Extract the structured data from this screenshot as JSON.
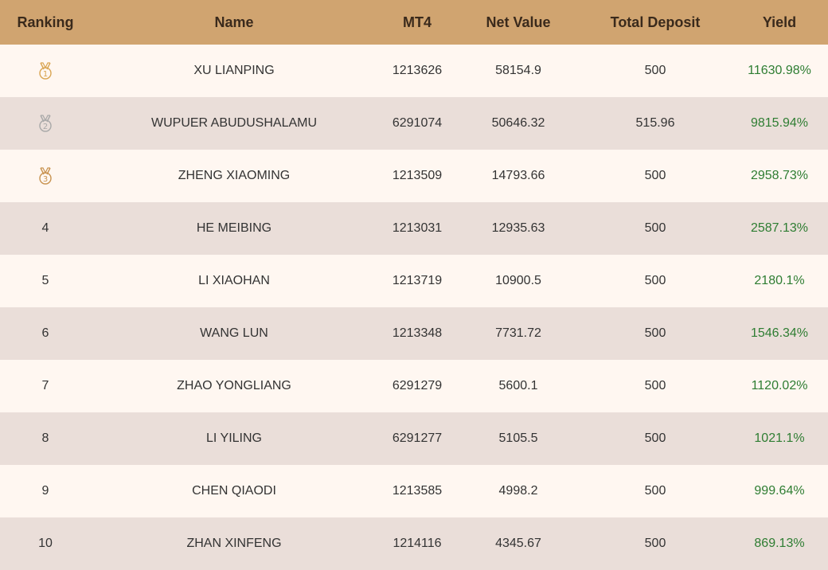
{
  "header": {
    "ranking": "Ranking",
    "name": "Name",
    "mt4": "MT4",
    "net_value": "Net Value",
    "total_deposit": "Total Deposit",
    "yield": "Yield"
  },
  "colors": {
    "header_bg": "#d0a470",
    "row_light": "#fff7f1",
    "row_dark": "#eaded9",
    "yield_green": "#2e7d32",
    "gold_medal": "#d9a553",
    "silver_medal": "#a8a8a8",
    "bronze_medal": "#c8924f"
  },
  "rows": [
    {
      "rank": "1",
      "medal": "gold-medal-icon",
      "name": "XU LIANPING",
      "mt4": "1213626",
      "net_value": "58154.9",
      "total_deposit": "500",
      "yield": "11630.98%"
    },
    {
      "rank": "2",
      "medal": "silver-medal-icon",
      "name": "WUPUER ABUDUSHALAMU",
      "mt4": "6291074",
      "net_value": "50646.32",
      "total_deposit": "515.96",
      "yield": "9815.94%"
    },
    {
      "rank": "3",
      "medal": "bronze-medal-icon",
      "name": "ZHENG XIAOMING",
      "mt4": "1213509",
      "net_value": "14793.66",
      "total_deposit": "500",
      "yield": "2958.73%"
    },
    {
      "rank": "4",
      "name": "HE MEIBING",
      "mt4": "1213031",
      "net_value": "12935.63",
      "total_deposit": "500",
      "yield": "2587.13%"
    },
    {
      "rank": "5",
      "name": "LI XIAOHAN",
      "mt4": "1213719",
      "net_value": "10900.5",
      "total_deposit": "500",
      "yield": "2180.1%"
    },
    {
      "rank": "6",
      "name": "WANG LUN",
      "mt4": "1213348",
      "net_value": "7731.72",
      "total_deposit": "500",
      "yield": "1546.34%"
    },
    {
      "rank": "7",
      "name": "ZHAO YONGLIANG",
      "mt4": "6291279",
      "net_value": "5600.1",
      "total_deposit": "500",
      "yield": "1120.02%"
    },
    {
      "rank": "8",
      "name": "LI YILING",
      "mt4": "6291277",
      "net_value": "5105.5",
      "total_deposit": "500",
      "yield": "1021.1%"
    },
    {
      "rank": "9",
      "name": "CHEN QIAODI",
      "mt4": "1213585",
      "net_value": "4998.2",
      "total_deposit": "500",
      "yield": "999.64%"
    },
    {
      "rank": "10",
      "name": "ZHAN XINFENG",
      "mt4": "1214116",
      "net_value": "4345.67",
      "total_deposit": "500",
      "yield": "869.13%"
    }
  ]
}
